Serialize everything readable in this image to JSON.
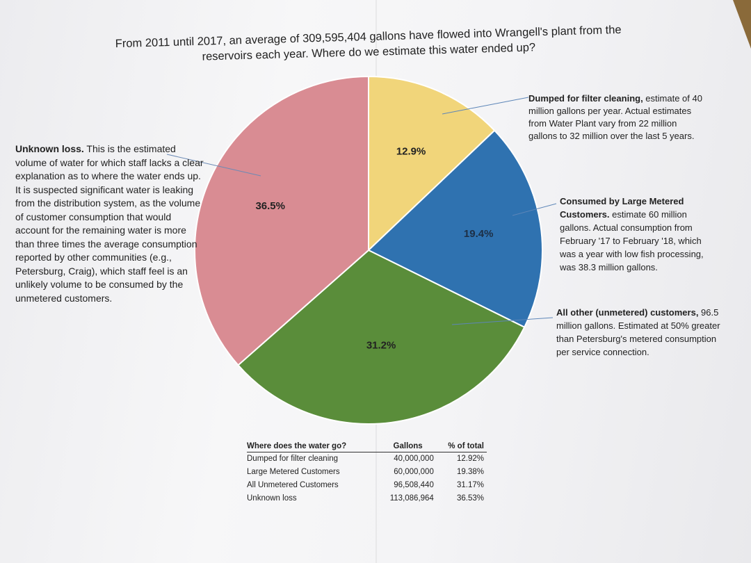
{
  "title": "From 2011 until 2017, an average of 309,595,404 gallons have flowed into Wrangell's plant from the reservoirs each year.  Where do we estimate this water ended up?",
  "colors": {
    "filter": "#f1d57a",
    "metered": "#2f72b0",
    "unmetered": "#5a8d3a",
    "unknown": "#d98c93"
  },
  "chart_data": {
    "type": "pie",
    "slices": [
      {
        "key": "filter",
        "label": "12.9%",
        "value": 12.9
      },
      {
        "key": "metered",
        "label": "19.4%",
        "value": 19.4
      },
      {
        "key": "unmetered",
        "label": "31.2%",
        "value": 31.2
      },
      {
        "key": "unknown",
        "label": "36.5%",
        "value": 36.5
      }
    ]
  },
  "annotations": {
    "unknown": {
      "bold": "Unknown loss.",
      "text": " This is the estimated volume of water for which staff lacks a clear explanation as to where the water ends up.  It is suspected significant water is leaking from the distribution system, as the volume of customer consumption that would account for the remaining water is more than three times the average consumption reported by other communities (e.g., Petersburg, Craig), which staff feel is an unlikely volume to be consumed by the unmetered customers."
    },
    "filter": {
      "bold": "Dumped for filter cleaning,",
      "text": " estimate of 40 million gallons per year.  Actual estimates from Water Plant vary from 22 million gallons to 32 million over the last 5 years."
    },
    "metered": {
      "bold": "Consumed by Large Metered Customers.",
      "text": " estimate 60 million gallons.  Actual consumption from February '17 to February '18, which was a year with low fish processing, was 38.3 million gallons."
    },
    "unmetered": {
      "bold": "All other (unmetered) customers,",
      "text": " 96.5 million gallons. Estimated at 50% greater than Petersburg's metered consumption per service connection."
    }
  },
  "table": {
    "headers": [
      "Where does the water go?",
      "Gallons",
      "% of total"
    ],
    "rows": [
      [
        "Dumped for filter cleaning",
        "40,000,000",
        "12.92%"
      ],
      [
        "Large Metered Customers",
        "60,000,000",
        "19.38%"
      ],
      [
        "All Unmetered Customers",
        "96,508,440",
        "31.17%"
      ],
      [
        "Unknown loss",
        "113,086,964",
        "36.53%"
      ]
    ]
  }
}
